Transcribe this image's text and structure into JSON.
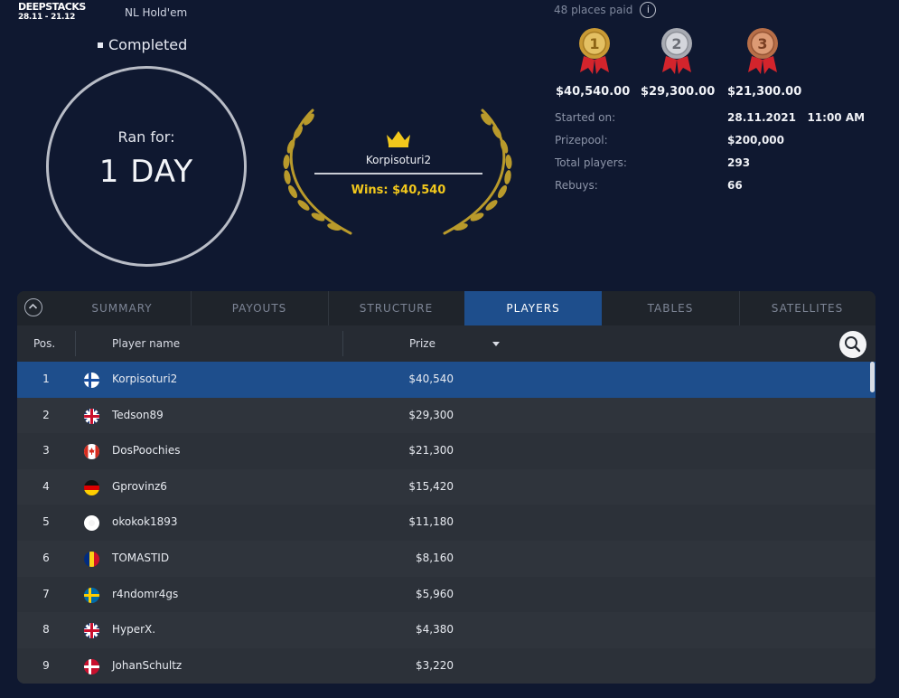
{
  "header": {
    "logo_line1": "DEEPSTACKS",
    "logo_line2": "28.11 - 21.12",
    "game": "NL Hold'em",
    "status": "Completed",
    "ran_for_label": "Ran for:",
    "ran_for_value": "1 DAY"
  },
  "winner": {
    "name": "Korpisoturi2",
    "wins": "Wins: $40,540"
  },
  "places_paid": "48 places paid",
  "medals": [
    {
      "rank": "1",
      "prize": "$40,540.00",
      "color": "#d6a93b"
    },
    {
      "rank": "2",
      "prize": "$29,300.00",
      "color": "#b9bcc4"
    },
    {
      "rank": "3",
      "prize": "$21,300.00",
      "color": "#c77e58"
    }
  ],
  "info": [
    {
      "label": "Started on:",
      "value": "28.11.2021   11:00 AM"
    },
    {
      "label": "Prizepool:",
      "value": "$200,000"
    },
    {
      "label": "Total players:",
      "value": "293"
    },
    {
      "label": "Rebuys:",
      "value": "66"
    }
  ],
  "tabs": [
    "SUMMARY",
    "PAYOUTS",
    "STRUCTURE",
    "PLAYERS",
    "TABLES",
    "SATELLITES"
  ],
  "active_tab": "PLAYERS",
  "columns": {
    "pos": "Pos.",
    "name": "Player name",
    "prize": "Prize"
  },
  "players": [
    {
      "pos": "1",
      "flag": "finland-flag-icon",
      "name": "Korpisoturi2",
      "prize": "$40,540"
    },
    {
      "pos": "2",
      "flag": "uk-flag-icon",
      "name": "Tedson89",
      "prize": "$29,300"
    },
    {
      "pos": "3",
      "flag": "canada-flag-icon",
      "name": "DosPoochies",
      "prize": "$21,300"
    },
    {
      "pos": "4",
      "flag": "germany-flag-icon",
      "name": "Gprovinz6",
      "prize": "$15,420"
    },
    {
      "pos": "5",
      "flag": "japan-flag-icon",
      "name": "okokok1893",
      "prize": "$11,180"
    },
    {
      "pos": "6",
      "flag": "romania-flag-icon",
      "name": "TOMASTID",
      "prize": "$8,160"
    },
    {
      "pos": "7",
      "flag": "sweden-flag-icon",
      "name": "r4ndomr4gs",
      "prize": "$5,960"
    },
    {
      "pos": "8",
      "flag": "uk-flag-icon",
      "name": "HyperX.",
      "prize": "$4,380"
    },
    {
      "pos": "9",
      "flag": "denmark-flag-icon",
      "name": "JohanSchultz",
      "prize": "$3,220"
    }
  ],
  "colors": {
    "background": "#0f1830",
    "active_tab": "#1e4e8c",
    "winner_gold": "#f2c81c"
  }
}
